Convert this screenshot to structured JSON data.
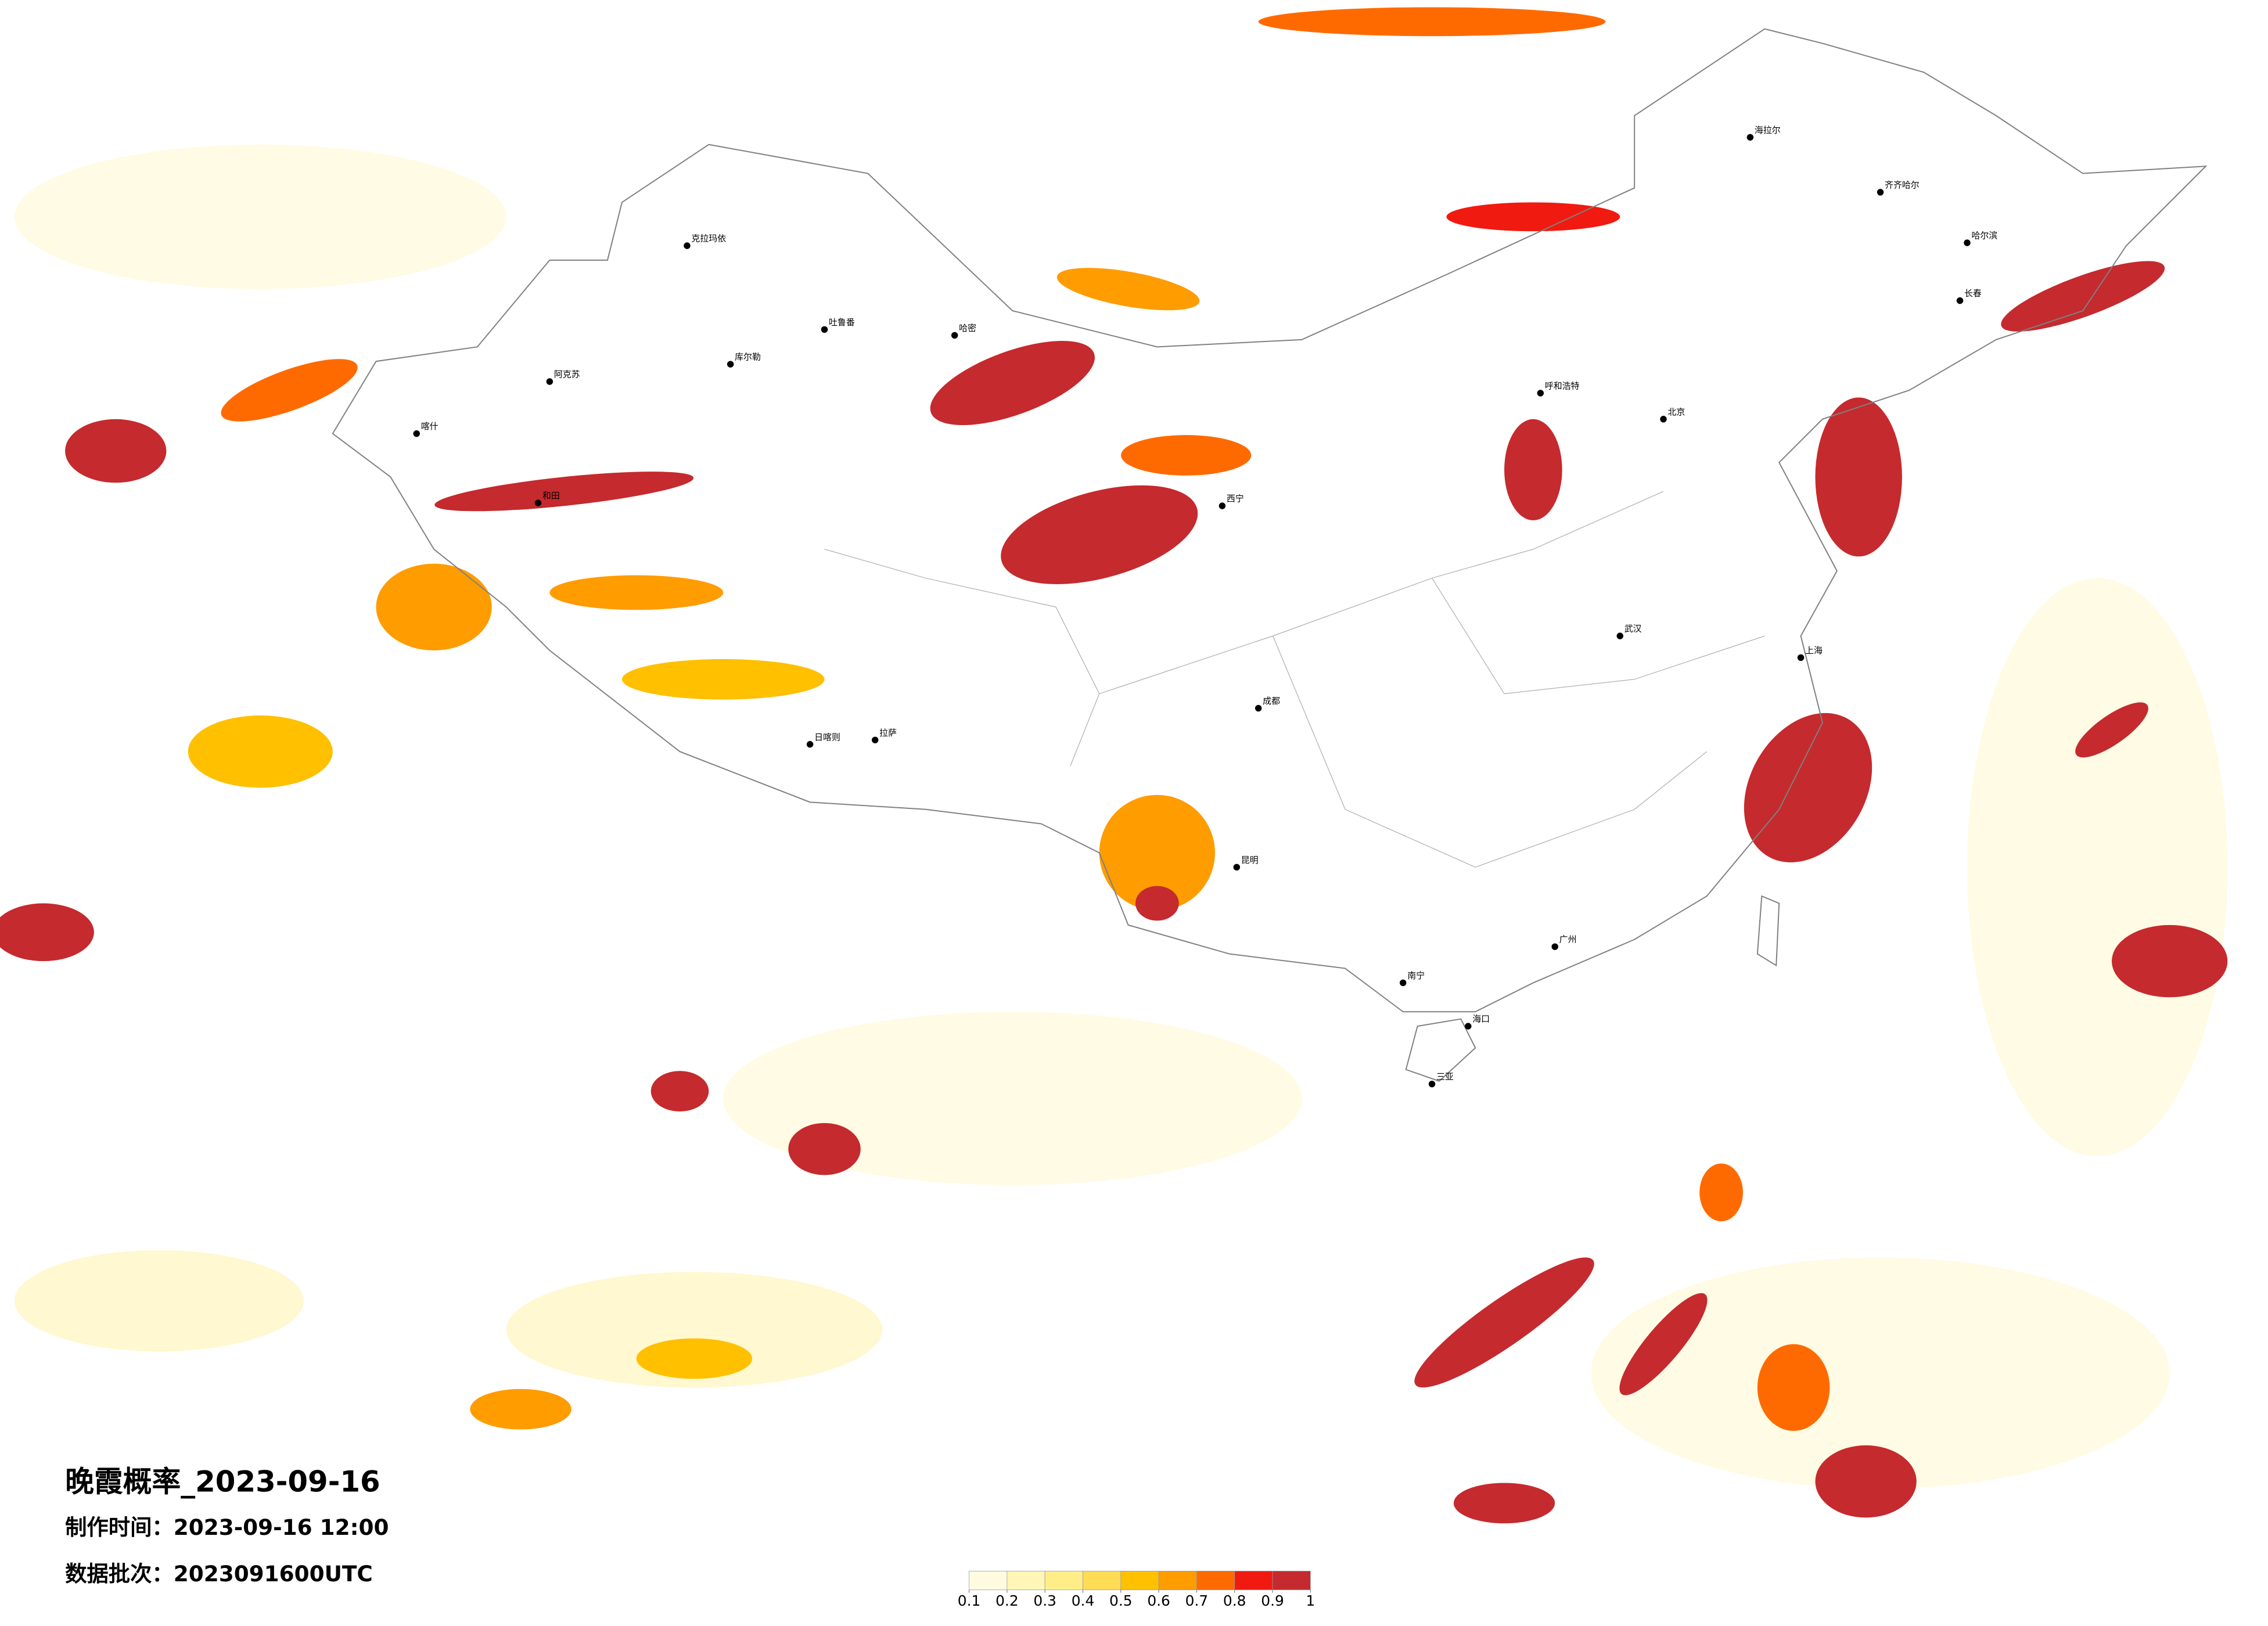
{
  "header": {
    "title": "晚霞概率_2023-09-16",
    "made_time": "制作时间：2023-09-16 12:00",
    "data_batch": "数据批次：2023091600UTC"
  },
  "legend": {
    "ticks": [
      0.1,
      0.2,
      0.3,
      0.4,
      0.5,
      0.6,
      0.7,
      0.8,
      0.9,
      1
    ],
    "colors": [
      "#fffbe0",
      "#fff6b8",
      "#ffee88",
      "#ffdc55",
      "#ffc000",
      "#ff9c00",
      "#ff6a00",
      "#f01a10",
      "#c52a2e"
    ]
  },
  "cities": [
    "克拉玛依",
    "吐鲁番",
    "哈密",
    "库尔勒",
    "阿克苏",
    "喀什",
    "和田",
    "海拉尔",
    "齐齐哈尔",
    "哈尔滨",
    "长春",
    "呼和浩特",
    "西宁",
    "日喀则",
    "拉萨",
    "昆明",
    "南宁",
    "海口",
    "三亚",
    "北京",
    "上海",
    "广州",
    "成都",
    "武汉"
  ]
}
